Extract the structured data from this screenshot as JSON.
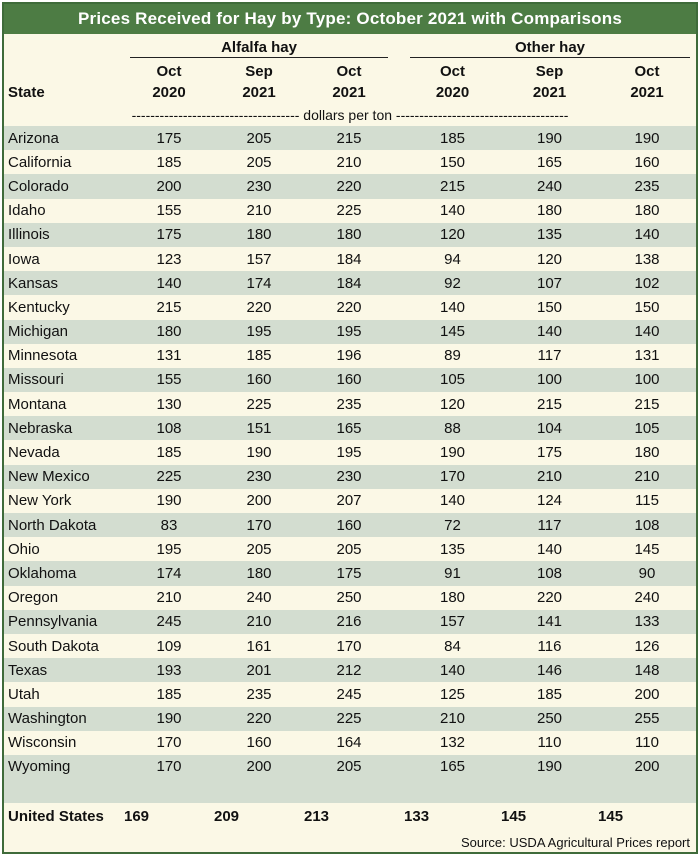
{
  "title": "Prices Received for Hay by Type: October 2021 with Comparisons",
  "groups": {
    "alfalfa": "Alfalfa hay",
    "other": "Other hay"
  },
  "column_headers": {
    "state": "State",
    "cols": [
      {
        "top": "Oct",
        "bottom": "2020"
      },
      {
        "top": "Sep",
        "bottom": "2021"
      },
      {
        "top": "Oct",
        "bottom": "2021"
      },
      {
        "top": "Oct",
        "bottom": "2020"
      },
      {
        "top": "Sep",
        "bottom": "2021"
      },
      {
        "top": "Oct",
        "bottom": "2021"
      }
    ]
  },
  "unit_label": "------------------------------------ dollars per ton -------------------------------------",
  "rows": [
    {
      "state": "Arizona",
      "v": [
        "175",
        "205",
        "215",
        "185",
        "190",
        "190"
      ]
    },
    {
      "state": "California",
      "v": [
        "185",
        "205",
        "210",
        "150",
        "165",
        "160"
      ]
    },
    {
      "state": "Colorado",
      "v": [
        "200",
        "230",
        "220",
        "215",
        "240",
        "235"
      ]
    },
    {
      "state": "Idaho",
      "v": [
        "155",
        "210",
        "225",
        "140",
        "180",
        "180"
      ]
    },
    {
      "state": "Illinois",
      "v": [
        "175",
        "180",
        "180",
        "120",
        "135",
        "140"
      ]
    },
    {
      "state": "Iowa",
      "v": [
        "123",
        "157",
        "184",
        "94",
        "120",
        "138"
      ]
    },
    {
      "state": "Kansas",
      "v": [
        "140",
        "174",
        "184",
        "92",
        "107",
        "102"
      ]
    },
    {
      "state": "Kentucky",
      "v": [
        "215",
        "220",
        "220",
        "140",
        "150",
        "150"
      ]
    },
    {
      "state": "Michigan",
      "v": [
        "180",
        "195",
        "195",
        "145",
        "140",
        "140"
      ]
    },
    {
      "state": "Minnesota",
      "v": [
        "131",
        "185",
        "196",
        "89",
        "117",
        "131"
      ]
    },
    {
      "state": "Missouri",
      "v": [
        "155",
        "160",
        "160",
        "105",
        "100",
        "100"
      ]
    },
    {
      "state": "Montana",
      "v": [
        "130",
        "225",
        "235",
        "120",
        "215",
        "215"
      ]
    },
    {
      "state": "Nebraska",
      "v": [
        "108",
        "151",
        "165",
        "88",
        "104",
        "105"
      ]
    },
    {
      "state": "Nevada",
      "v": [
        "185",
        "190",
        "195",
        "190",
        "175",
        "180"
      ]
    },
    {
      "state": "New Mexico",
      "v": [
        "225",
        "230",
        "230",
        "170",
        "210",
        "210"
      ]
    },
    {
      "state": "New York",
      "v": [
        "190",
        "200",
        "207",
        "140",
        "124",
        "115"
      ]
    },
    {
      "state": "North Dakota",
      "v": [
        "83",
        "170",
        "160",
        "72",
        "117",
        "108"
      ]
    },
    {
      "state": "Ohio",
      "v": [
        "195",
        "205",
        "205",
        "135",
        "140",
        "145"
      ]
    },
    {
      "state": "Oklahoma",
      "v": [
        "174",
        "180",
        "175",
        "91",
        "108",
        "90"
      ]
    },
    {
      "state": "Oregon",
      "v": [
        "210",
        "240",
        "250",
        "180",
        "220",
        "240"
      ]
    },
    {
      "state": "Pennsylvania",
      "v": [
        "245",
        "210",
        "216",
        "157",
        "141",
        "133"
      ]
    },
    {
      "state": "South Dakota",
      "v": [
        "109",
        "161",
        "170",
        "84",
        "116",
        "126"
      ]
    },
    {
      "state": "Texas",
      "v": [
        "193",
        "201",
        "212",
        "140",
        "146",
        "148"
      ]
    },
    {
      "state": "Utah",
      "v": [
        "185",
        "235",
        "245",
        "125",
        "185",
        "200"
      ]
    },
    {
      "state": "Washington",
      "v": [
        "190",
        "220",
        "225",
        "210",
        "250",
        "255"
      ]
    },
    {
      "state": "Wisconsin",
      "v": [
        "170",
        "160",
        "164",
        "132",
        "110",
        "110"
      ]
    },
    {
      "state": "Wyoming",
      "v": [
        "170",
        "200",
        "205",
        "165",
        "190",
        "200"
      ]
    }
  ],
  "total": {
    "state": "United States",
    "v": [
      "169",
      "209",
      "213",
      "133",
      "145",
      "145"
    ]
  },
  "source": "Source: USDA Agricultural Prices report"
}
